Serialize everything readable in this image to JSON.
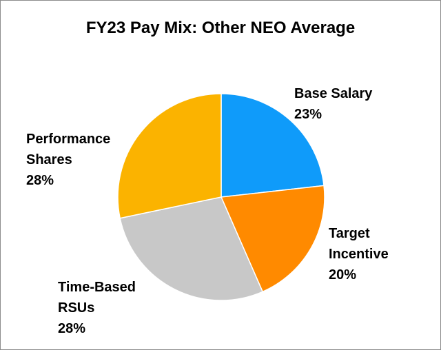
{
  "chart_data": {
    "type": "pie",
    "title": "FY23 Pay Mix: Other NEO Average",
    "slices": [
      {
        "label_lines": [
          "Base Salary"
        ],
        "value": 23,
        "value_label": "23%",
        "color": "#0f9bfa"
      },
      {
        "label_lines": [
          "Target",
          "Incentive"
        ],
        "value": 20,
        "value_label": "20%",
        "color": "#ff8a00"
      },
      {
        "label_lines": [
          "Time-Based",
          "RSUs"
        ],
        "value": 28,
        "value_label": "28%",
        "color": "#c8c8c8"
      },
      {
        "label_lines": [
          "Performance",
          "Shares"
        ],
        "value": 28,
        "value_label": "28%",
        "color": "#fbb300"
      }
    ],
    "start": "12 o'clock",
    "direction": "clockwise",
    "slice_border_color": "#ffffff",
    "legend": "none (data labels)"
  }
}
